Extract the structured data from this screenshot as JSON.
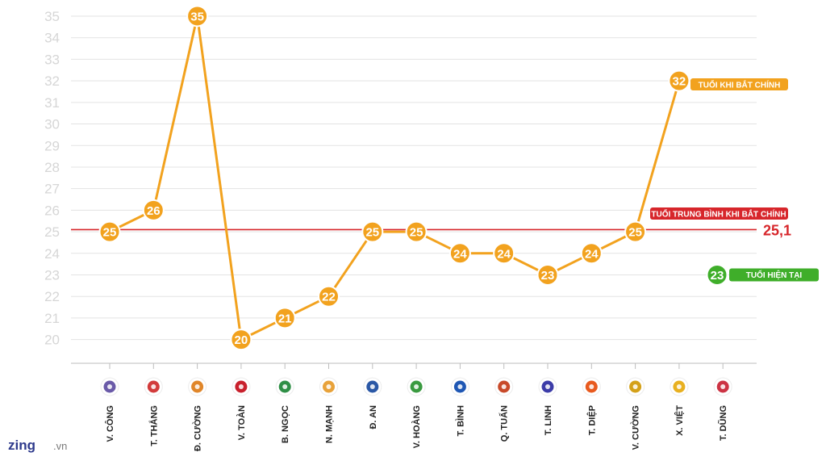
{
  "chart_data": {
    "type": "line",
    "categories": [
      "V. CÔNG",
      "T. THẮNG",
      "Đ. CƯỜNG",
      "V. TOÀN",
      "B. NGỌC",
      "N. MẠNH",
      "Đ. AN",
      "V. HOÀNG",
      "T. BÌNH",
      "Q. TUẤN",
      "T. LINH",
      "T. DIỆP",
      "V. CƯỜNG",
      "X. VIỆT",
      "T. DŨNG"
    ],
    "series": [
      {
        "name": "TUỔI KHI BẮT CHÍNH",
        "values": [
          25,
          26,
          35,
          20,
          21,
          22,
          25,
          25,
          24,
          24,
          23,
          24,
          25,
          32,
          null
        ],
        "color": "#f2a21e"
      }
    ],
    "current_age": {
      "label": "TUỔI HIỆN TẠI",
      "value": 23,
      "color": "#3fae2a"
    },
    "average": {
      "label": "TUỔI TRUNG BÌNH KHI BẮT CHÍNH",
      "value": 25.1,
      "value_text": "25,1",
      "color": "#d7262b"
    },
    "yticks": [
      20,
      21,
      22,
      23,
      24,
      25,
      26,
      27,
      28,
      29,
      30,
      31,
      32,
      33,
      34,
      35
    ],
    "ylim": [
      18.9,
      35.3
    ],
    "grid": true,
    "team_logo_colors": [
      "#6a5aa8",
      "#d23b3b",
      "#e0862a",
      "#c8202c",
      "#2f8f46",
      "#e8a23a",
      "#2b58a6",
      "#3a9a40",
      "#1f57b4",
      "#c84a2a",
      "#3c3ca8",
      "#e85a1e",
      "#d4a11a",
      "#e8b020",
      "#cc3344"
    ]
  },
  "watermark": {
    "brand": "zing",
    "domain": ".vn"
  }
}
